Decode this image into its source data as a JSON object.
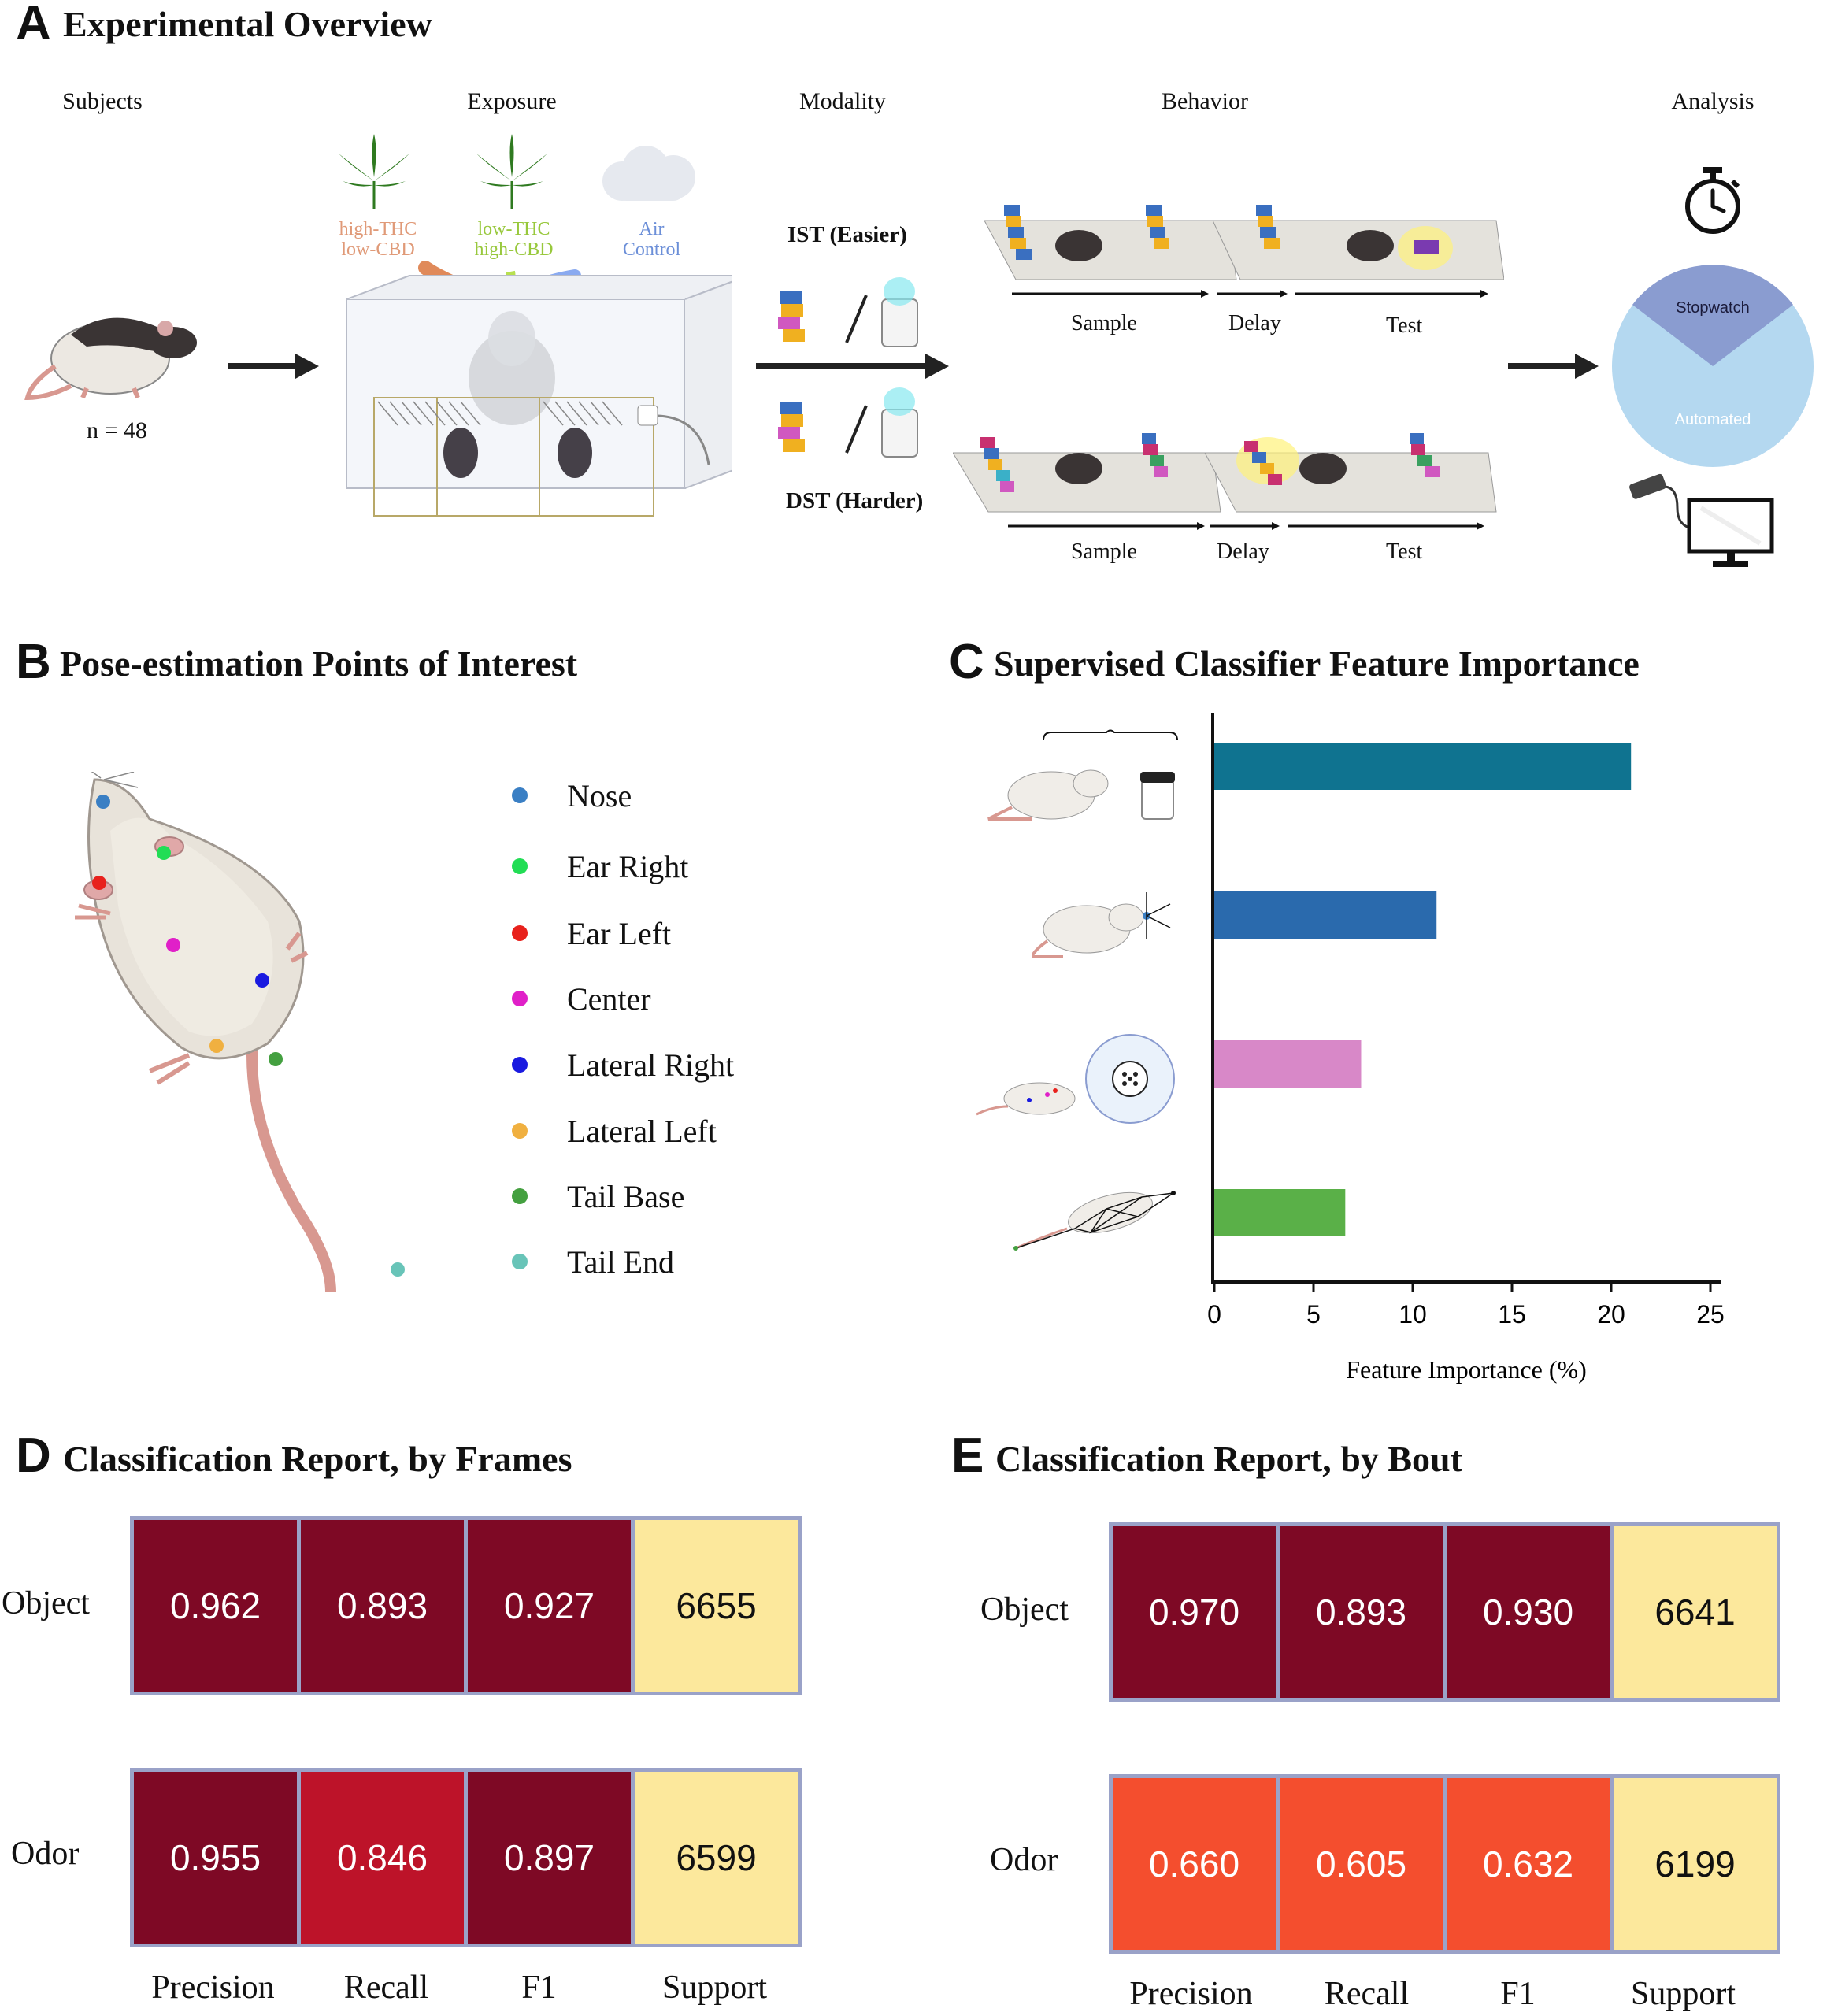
{
  "panelA": {
    "letter": "A",
    "title": "Experimental Overview",
    "columns": [
      "Subjects",
      "Exposure",
      "Modality",
      "Behavior",
      "Analysis"
    ],
    "n_label": "n = 48",
    "exposure_labels": [
      {
        "line1": "high-THC",
        "line2": "low-CBD",
        "color": "#e09a78"
      },
      {
        "line1": "low-THC",
        "line2": "high-CBD",
        "color": "#98c83c"
      },
      {
        "line1": "Air",
        "line2": "Control",
        "color": "#6c8fd8"
      }
    ],
    "tasks": [
      "IST (Easier)",
      "DST (Harder)"
    ],
    "phases": [
      "Sample",
      "Delay",
      "Test"
    ],
    "analysis": {
      "manual": "Stopwatch",
      "auto": "Automated"
    }
  },
  "panelB": {
    "letter": "B",
    "title": "Pose-estimation Points of Interest",
    "legend": [
      {
        "label": "Nose",
        "color": "#3a7fc4"
      },
      {
        "label": "Ear Right",
        "color": "#22dd55"
      },
      {
        "label": "Ear Left",
        "color": "#e8211c"
      },
      {
        "label": "Center",
        "color": "#e020c8"
      },
      {
        "label": "Lateral Right",
        "color": "#1a1ae0"
      },
      {
        "label": "Lateral Left",
        "color": "#f0b040"
      },
      {
        "label": "Tail Base",
        "color": "#44a040"
      },
      {
        "label": "Tail End",
        "color": "#68c4b8"
      }
    ]
  },
  "panelC": {
    "letter": "C",
    "title": "Supervised Classifier Feature Importance",
    "chart_data": {
      "type": "bar",
      "orientation": "horizontal",
      "values": [
        21,
        11.2,
        7.4,
        6.6
      ],
      "colors": [
        "#0f7390",
        "#2a6aad",
        "#d888c8",
        "#5ab048"
      ],
      "xlabel": "Feature Importance (%)",
      "xlim": [
        0,
        25
      ],
      "xticks": [
        "0",
        "5",
        "10",
        "15",
        "20",
        "25"
      ]
    }
  },
  "panelD": {
    "letter": "D",
    "title": "Classification Report, by Frames",
    "rows": [
      {
        "label": "Object",
        "cells": [
          {
            "v": "0.962",
            "bg": "#7e0925",
            "fg": "#ffffff"
          },
          {
            "v": "0.893",
            "bg": "#7e0925",
            "fg": "#ffffff"
          },
          {
            "v": "0.927",
            "bg": "#7e0925",
            "fg": "#ffffff"
          },
          {
            "v": "6655",
            "bg": "#fce89c",
            "fg": "#111111"
          }
        ]
      },
      {
        "label": "Odor",
        "cells": [
          {
            "v": "0.955",
            "bg": "#7e0925",
            "fg": "#ffffff"
          },
          {
            "v": "0.846",
            "bg": "#bd1329",
            "fg": "#ffffff"
          },
          {
            "v": "0.897",
            "bg": "#7e0925",
            "fg": "#ffffff"
          },
          {
            "v": "6599",
            "bg": "#fce89c",
            "fg": "#111111"
          }
        ]
      }
    ],
    "columns": [
      "Precision",
      "Recall",
      "F1",
      "Support"
    ]
  },
  "panelE": {
    "letter": "E",
    "title": "Classification Report, by Bout",
    "rows": [
      {
        "label": "Object",
        "cells": [
          {
            "v": "0.970",
            "bg": "#7e0925",
            "fg": "#ffffff"
          },
          {
            "v": "0.893",
            "bg": "#7e0925",
            "fg": "#ffffff"
          },
          {
            "v": "0.930",
            "bg": "#7e0925",
            "fg": "#ffffff"
          },
          {
            "v": "6641",
            "bg": "#fce89c",
            "fg": "#111111"
          }
        ]
      },
      {
        "label": "Odor",
        "cells": [
          {
            "v": "0.660",
            "bg": "#f44e2e",
            "fg": "#ffffff"
          },
          {
            "v": "0.605",
            "bg": "#f44e2e",
            "fg": "#ffffff"
          },
          {
            "v": "0.632",
            "bg": "#f44e2e",
            "fg": "#ffffff"
          },
          {
            "v": "6199",
            "bg": "#fce89c",
            "fg": "#111111"
          }
        ]
      }
    ],
    "columns": [
      "Precision",
      "Recall",
      "F1",
      "Support"
    ]
  }
}
